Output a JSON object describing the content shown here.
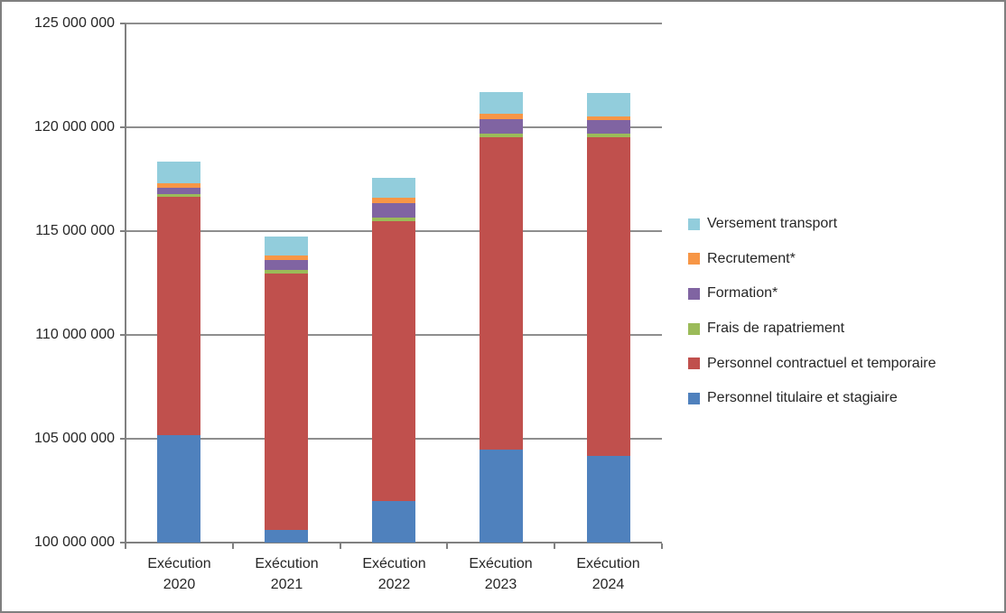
{
  "chart_data": {
    "type": "bar",
    "stacked": true,
    "title": "",
    "xlabel": "",
    "ylabel": "",
    "grid": true,
    "legend_position": "right",
    "ylim": [
      100000000,
      125000000
    ],
    "ytick_step": 5000000,
    "yticks": [
      "100 000 000",
      "105 000 000",
      "110 000 000",
      "115 000 000",
      "120 000 000",
      "125 000 000"
    ],
    "categories": [
      [
        "Exécution",
        "2020"
      ],
      [
        "Exécution",
        "2021"
      ],
      [
        "Exécution",
        "2022"
      ],
      [
        "Exécution",
        "2023"
      ],
      [
        "Exécution",
        "2024"
      ]
    ],
    "series": [
      {
        "name": "Personnel titulaire et stagiaire",
        "color": "#4F81BD",
        "values": [
          105170000,
          100620000,
          102000000,
          104480000,
          104170000
        ]
      },
      {
        "name": "Personnel contractuel et temporaire",
        "color": "#C0504D",
        "values": [
          11470000,
          12350000,
          13470000,
          15040000,
          15360000
        ]
      },
      {
        "name": "Frais de rapatriement",
        "color": "#9BBB59",
        "values": [
          160000,
          170000,
          190000,
          180000,
          170000
        ]
      },
      {
        "name": "Formation*",
        "color": "#8064A2",
        "values": [
          300000,
          470000,
          700000,
          690000,
          650000
        ]
      },
      {
        "name": "Recrutement*",
        "color": "#F79646",
        "values": [
          220000,
          200000,
          260000,
          260000,
          170000
        ]
      },
      {
        "name": "Versement transport",
        "color": "#92CDDC",
        "values": [
          1030000,
          940000,
          960000,
          1030000,
          1130000
        ]
      }
    ],
    "legend_order": [
      "Versement transport",
      "Recrutement*",
      "Formation*",
      "Frais de rapatriement",
      "Personnel contractuel et temporaire",
      "Personnel titulaire et stagiaire"
    ],
    "colors": {
      "gridline": "#8E8E8E",
      "axis": "#808080",
      "text": "#262626",
      "border": "#7F7F7F"
    }
  }
}
